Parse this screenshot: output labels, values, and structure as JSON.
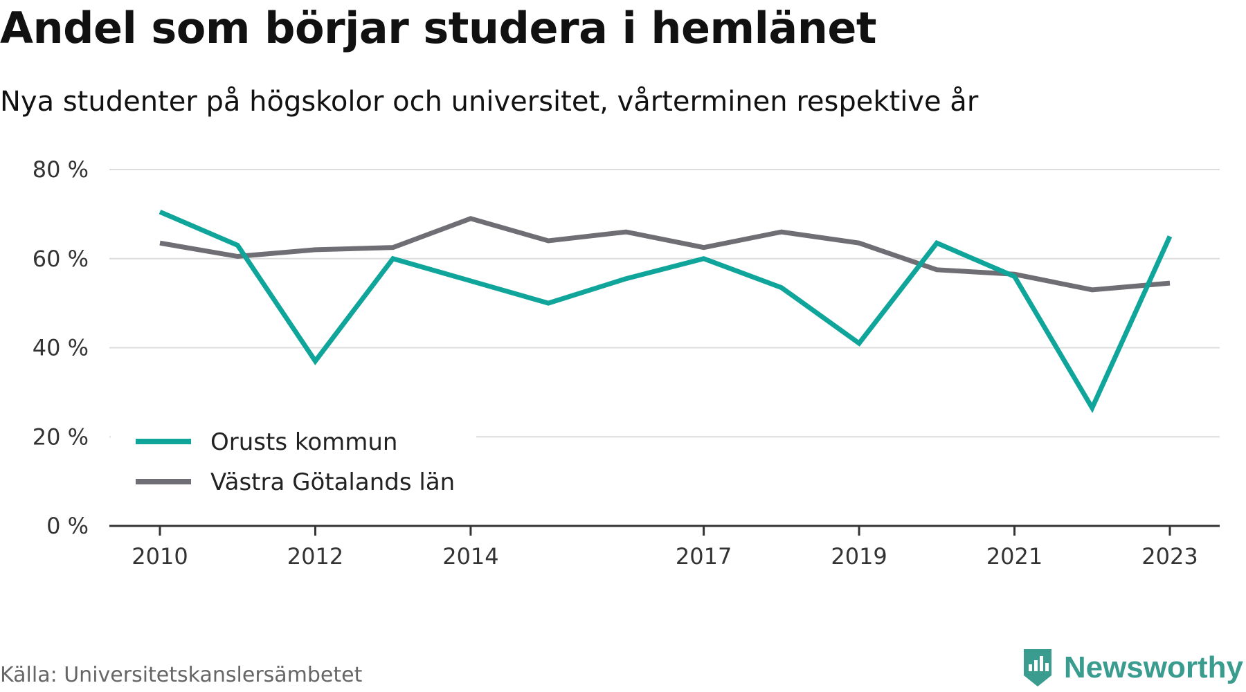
{
  "title": "Andel som börjar studera i hemlänet",
  "subtitle": "Nya studenter på högskolor och universitet, vårterminen respektive år",
  "source": "Källa: Universitetskanslersämbetet",
  "brand": {
    "name": "Newsworthy",
    "color": "#3a9b8f",
    "icon": "newsworthy-logo-icon"
  },
  "chart_data": {
    "type": "line",
    "x": [
      2010,
      2011,
      2012,
      2013,
      2014,
      2015,
      2016,
      2017,
      2018,
      2019,
      2020,
      2021,
      2022,
      2023
    ],
    "x_tick_labels": [
      "2010",
      "2012",
      "2014",
      "2017",
      "2019",
      "2021",
      "2023"
    ],
    "x_tick_values": [
      2010,
      2012,
      2014,
      2017,
      2019,
      2021,
      2023
    ],
    "y_tick_labels": [
      "0 %",
      "20 %",
      "40 %",
      "60 %",
      "80 %"
    ],
    "y_tick_values": [
      0,
      20,
      40,
      60,
      80
    ],
    "ylim": [
      0,
      80
    ],
    "grid": true,
    "legend_position": "bottom-left",
    "series": [
      {
        "name": "Orusts kommun",
        "color": "#0fa59a",
        "values": [
          70.5,
          63,
          37,
          60,
          55,
          50,
          55.5,
          60,
          53.5,
          41,
          63.5,
          56,
          26.5,
          65
        ]
      },
      {
        "name": "Västra Götalands län",
        "color": "#6f6e74",
        "values": [
          63.5,
          60.5,
          62,
          62.5,
          69,
          64,
          66,
          62.5,
          66,
          63.5,
          57.5,
          56.5,
          53,
          54.5
        ]
      }
    ]
  }
}
